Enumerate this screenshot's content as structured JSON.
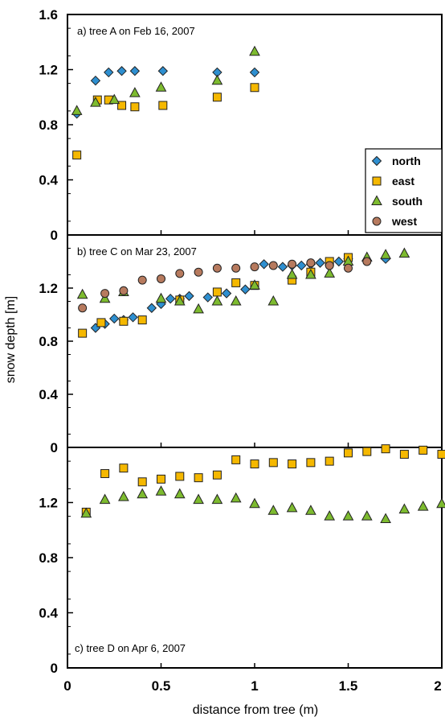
{
  "chart_data": {
    "type": "scatter",
    "xlabel": "distance from tree (m)",
    "ylabel": "snow depth [m]",
    "x_ticks": [
      "0",
      "0.5",
      "1",
      "1.5",
      "2"
    ],
    "xlim": [
      0,
      2
    ],
    "grid": false,
    "legend": {
      "placement": "right, across panels a and b",
      "entries": [
        {
          "name": "north",
          "marker": "diamond",
          "color": "#2e8fd0"
        },
        {
          "name": "east",
          "marker": "square",
          "color": "#f5b800"
        },
        {
          "name": "south",
          "marker": "triangle",
          "color": "#7dbb2f"
        },
        {
          "name": "west",
          "marker": "circle",
          "color": "#b77a5e"
        }
      ]
    },
    "panels": [
      {
        "label": "a) tree A on Feb 16, 2007",
        "ylim": [
          0,
          1.6
        ],
        "y_ticks": [
          "0",
          "0.4",
          "0.8",
          "1.2",
          "1.6"
        ],
        "series": [
          {
            "name": "north",
            "x": [
              0.05,
              0.15,
              0.22,
              0.29,
              0.36,
              0.51,
              0.8,
              1.0
            ],
            "y": [
              0.88,
              1.12,
              1.18,
              1.19,
              1.19,
              1.19,
              1.18,
              1.18
            ]
          },
          {
            "name": "east",
            "x": [
              0.05,
              0.16,
              0.22,
              0.29,
              0.36,
              0.51,
              0.8,
              1.0
            ],
            "y": [
              0.58,
              0.98,
              0.98,
              0.94,
              0.93,
              0.94,
              1.0,
              1.07
            ]
          },
          {
            "name": "south",
            "x": [
              0.05,
              0.15,
              0.25,
              0.36,
              0.5,
              0.8,
              1.0
            ],
            "y": [
              0.9,
              0.96,
              0.98,
              1.03,
              1.07,
              1.12,
              1.33
            ]
          }
        ]
      },
      {
        "label": "b) tree C on Mar 23, 2007",
        "ylim": [
          0,
          1.6
        ],
        "y_ticks": [
          "0",
          "0.4",
          "0.8",
          "1.2",
          "1.6"
        ],
        "series": [
          {
            "name": "north",
            "x": [
              0.15,
              0.2,
              0.25,
              0.3,
              0.35,
              0.45,
              0.5,
              0.55,
              0.6,
              0.65,
              0.75,
              0.85,
              0.95,
              1.05,
              1.15,
              1.2,
              1.25,
              1.3,
              1.35,
              1.45,
              1.5,
              1.6,
              1.7
            ],
            "y": [
              0.9,
              0.93,
              0.97,
              0.96,
              0.98,
              1.05,
              1.08,
              1.12,
              1.12,
              1.14,
              1.13,
              1.16,
              1.19,
              1.38,
              1.36,
              1.37,
              1.37,
              1.38,
              1.39,
              1.4,
              1.42,
              1.41,
              1.42
            ]
          },
          {
            "name": "east",
            "x": [
              0.08,
              0.18,
              0.3,
              0.4,
              0.6,
              0.8,
              0.9,
              1.0,
              1.2,
              1.3,
              1.4,
              1.5
            ],
            "y": [
              0.86,
              0.94,
              0.95,
              0.96,
              1.11,
              1.17,
              1.24,
              1.22,
              1.26,
              1.32,
              1.4,
              1.43
            ]
          },
          {
            "name": "south",
            "x": [
              0.08,
              0.2,
              0.3,
              0.5,
              0.6,
              0.7,
              0.8,
              0.9,
              1.0,
              1.1,
              1.2,
              1.3,
              1.4,
              1.5,
              1.6,
              1.7,
              1.8
            ],
            "y": [
              1.15,
              1.12,
              1.17,
              1.12,
              1.1,
              1.04,
              1.1,
              1.1,
              1.22,
              1.1,
              1.3,
              1.3,
              1.31,
              1.4,
              1.43,
              1.45,
              1.46
            ]
          },
          {
            "name": "west",
            "x": [
              0.08,
              0.2,
              0.3,
              0.4,
              0.5,
              0.6,
              0.7,
              0.8,
              0.9,
              1.0,
              1.1,
              1.2,
              1.3,
              1.4,
              1.5,
              1.6
            ],
            "y": [
              1.05,
              1.16,
              1.18,
              1.26,
              1.27,
              1.31,
              1.32,
              1.35,
              1.35,
              1.36,
              1.37,
              1.38,
              1.39,
              1.37,
              1.35,
              1.4
            ]
          }
        ]
      },
      {
        "label": "c) tree D on Apr 6, 2007",
        "ylim": [
          0,
          1.6
        ],
        "y_ticks": [
          "0",
          "0.4",
          "0.8",
          "1.2",
          "1.6"
        ],
        "series": [
          {
            "name": "east",
            "x": [
              0.1,
              0.2,
              0.3,
              0.4,
              0.5,
              0.6,
              0.7,
              0.8,
              0.9,
              1.0,
              1.1,
              1.2,
              1.3,
              1.4,
              1.5,
              1.6,
              1.7,
              1.8,
              1.9,
              2.0
            ],
            "y": [
              1.13,
              1.41,
              1.45,
              1.35,
              1.37,
              1.39,
              1.38,
              1.4,
              1.51,
              1.48,
              1.49,
              1.48,
              1.49,
              1.5,
              1.56,
              1.57,
              1.59,
              1.55,
              1.58,
              1.55
            ]
          },
          {
            "name": "south",
            "x": [
              0.1,
              0.2,
              0.3,
              0.4,
              0.5,
              0.6,
              0.7,
              0.8,
              0.9,
              1.0,
              1.1,
              1.2,
              1.3,
              1.4,
              1.5,
              1.6,
              1.7,
              1.8,
              1.9,
              2.0
            ],
            "y": [
              1.12,
              1.22,
              1.24,
              1.26,
              1.28,
              1.26,
              1.22,
              1.22,
              1.23,
              1.19,
              1.14,
              1.16,
              1.14,
              1.1,
              1.1,
              1.1,
              1.08,
              1.15,
              1.17,
              1.19
            ]
          }
        ]
      }
    ]
  }
}
